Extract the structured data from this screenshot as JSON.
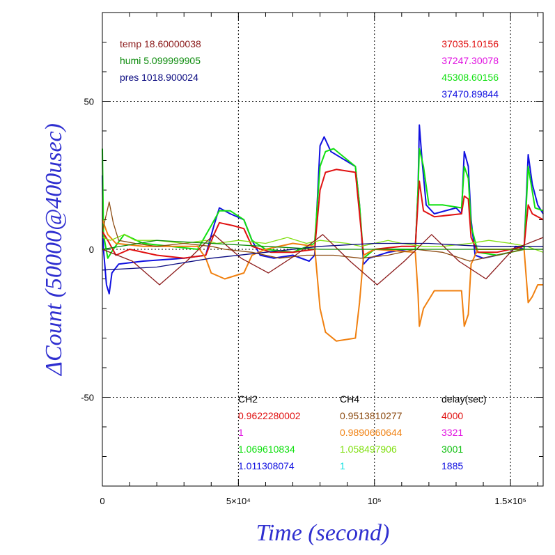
{
  "chart_data": {
    "type": "line",
    "title": "",
    "xlabel": "Time (second)",
    "ylabel": "ΔCount (50000@400usec)",
    "xlim": [
      0,
      162000
    ],
    "ylim": [
      -80,
      80
    ],
    "x_ticks": [
      {
        "value": 0,
        "label": "0"
      },
      {
        "value": 50000,
        "label": "5×10⁴"
      },
      {
        "value": 100000,
        "label": "10⁵"
      },
      {
        "value": 150000,
        "label": "1.5×10⁵"
      }
    ],
    "y_ticks": [
      {
        "value": 50,
        "label": "50"
      },
      {
        "value": 0,
        "label": "0"
      },
      {
        "value": -50,
        "label": "-50"
      }
    ],
    "grid": true,
    "env_legend": [
      {
        "text": "temp 18.60000038",
        "color": "#8b1a1a"
      },
      {
        "text": "humi 5.099999905",
        "color": "#0a8a0a"
      },
      {
        "text": "pres 1018.900024",
        "color": "#0a0a80"
      }
    ],
    "count_legend": [
      {
        "text": "37035.10156",
        "color": "#e01010"
      },
      {
        "text": "37247.30078",
        "color": "#e010e0"
      },
      {
        "text": "45308.60156",
        "color": "#10e010"
      },
      {
        "text": "37470.89844",
        "color": "#1010e0"
      }
    ],
    "factor_table": {
      "headers": [
        "CH2",
        "CH4",
        "delay(sec)"
      ],
      "rows": [
        {
          "ch2": "0.9622280002",
          "ch2_color": "#e01010",
          "ch4": "0.9513810277",
          "ch4_color": "#8b4a10",
          "delay": "4000",
          "delay_color": "#e01010"
        },
        {
          "ch2": "1",
          "ch2_color": "#e010e0",
          "ch4": "0.9890660644",
          "ch4_color": "#f08010",
          "delay": "3321",
          "delay_color": "#e010e0"
        },
        {
          "ch2": "1.069610834",
          "ch2_color": "#10e010",
          "ch4": "1.058497906",
          "ch4_color": "#80e010",
          "delay": "3001",
          "delay_color": "#10c010"
        },
        {
          "ch2": "1.011308074",
          "ch2_color": "#1010e0",
          "ch4": "1",
          "ch4_color": "#10e0e0",
          "delay": "1885",
          "delay_color": "#1010e0"
        }
      ]
    },
    "series": [
      {
        "color": "#1010e0",
        "values": [
          [
            0,
            25
          ],
          [
            400,
            0
          ],
          [
            1500,
            -12
          ],
          [
            2500,
            -15
          ],
          [
            3500,
            -8
          ],
          [
            6000,
            -5
          ],
          [
            15000,
            -4
          ],
          [
            30000,
            -3
          ],
          [
            38000,
            -2
          ],
          [
            41000,
            8
          ],
          [
            43000,
            14
          ],
          [
            47000,
            12
          ],
          [
            52000,
            10
          ],
          [
            55000,
            3
          ],
          [
            58000,
            -2
          ],
          [
            63000,
            -3
          ],
          [
            70000,
            -2
          ],
          [
            76000,
            -4
          ],
          [
            78000,
            -2
          ],
          [
            80000,
            35
          ],
          [
            81500,
            38
          ],
          [
            84000,
            33
          ],
          [
            93000,
            28
          ],
          [
            94500,
            15
          ],
          [
            96000,
            -5
          ],
          [
            98000,
            -3
          ],
          [
            105000,
            -1
          ],
          [
            112000,
            0
          ],
          [
            115000,
            0
          ],
          [
            116000,
            20
          ],
          [
            116500,
            42
          ],
          [
            117500,
            30
          ],
          [
            119000,
            15
          ],
          [
            122000,
            12
          ],
          [
            130000,
            14
          ],
          [
            132000,
            12
          ],
          [
            133000,
            33
          ],
          [
            134500,
            28
          ],
          [
            135500,
            10
          ],
          [
            137000,
            -2
          ],
          [
            140000,
            -3
          ],
          [
            145000,
            -2
          ],
          [
            150000,
            -1
          ],
          [
            152000,
            1
          ],
          [
            155000,
            0
          ],
          [
            156500,
            32
          ],
          [
            158000,
            22
          ],
          [
            160000,
            15
          ],
          [
            162000,
            12
          ]
        ]
      },
      {
        "color": "#10e010",
        "values": [
          [
            0,
            34
          ],
          [
            400,
            5
          ],
          [
            2000,
            -3
          ],
          [
            4000,
            0
          ],
          [
            8000,
            5
          ],
          [
            15000,
            2
          ],
          [
            25000,
            1
          ],
          [
            35000,
            0
          ],
          [
            40000,
            8
          ],
          [
            43000,
            13
          ],
          [
            47000,
            13
          ],
          [
            52000,
            10
          ],
          [
            55000,
            3
          ],
          [
            60000,
            0
          ],
          [
            70000,
            -1
          ],
          [
            78000,
            2
          ],
          [
            80000,
            28
          ],
          [
            82000,
            33
          ],
          [
            85000,
            34
          ],
          [
            93000,
            28
          ],
          [
            94500,
            15
          ],
          [
            96000,
            -3
          ],
          [
            100000,
            0
          ],
          [
            110000,
            0
          ],
          [
            115000,
            0
          ],
          [
            116000,
            20
          ],
          [
            116500,
            34
          ],
          [
            118000,
            28
          ],
          [
            120000,
            15
          ],
          [
            125000,
            15
          ],
          [
            132000,
            14
          ],
          [
            133000,
            28
          ],
          [
            134500,
            24
          ],
          [
            135500,
            8
          ],
          [
            138000,
            -1
          ],
          [
            145000,
            -2
          ],
          [
            150000,
            -1
          ],
          [
            155000,
            0
          ],
          [
            156500,
            28
          ],
          [
            159000,
            14
          ],
          [
            162000,
            13
          ]
        ]
      },
      {
        "color": "#e01010",
        "values": [
          [
            0,
            6
          ],
          [
            2000,
            3
          ],
          [
            5000,
            -2
          ],
          [
            10000,
            0
          ],
          [
            20000,
            -2
          ],
          [
            30000,
            -3
          ],
          [
            38000,
            -2
          ],
          [
            41000,
            5
          ],
          [
            43000,
            9
          ],
          [
            48000,
            8
          ],
          [
            52000,
            7
          ],
          [
            55000,
            1
          ],
          [
            62000,
            -1
          ],
          [
            70000,
            -1
          ],
          [
            78000,
            0
          ],
          [
            80000,
            20
          ],
          [
            82000,
            26
          ],
          [
            86000,
            27
          ],
          [
            93000,
            26
          ],
          [
            94500,
            12
          ],
          [
            96000,
            -2
          ],
          [
            100000,
            0
          ],
          [
            110000,
            1
          ],
          [
            115000,
            1
          ],
          [
            116000,
            16
          ],
          [
            116500,
            23
          ],
          [
            118000,
            13
          ],
          [
            122000,
            11
          ],
          [
            132000,
            12
          ],
          [
            133000,
            18
          ],
          [
            134500,
            17
          ],
          [
            135500,
            4
          ],
          [
            138000,
            -1
          ],
          [
            145000,
            -1
          ],
          [
            150000,
            0
          ],
          [
            155000,
            1
          ],
          [
            156500,
            15
          ],
          [
            158000,
            12
          ],
          [
            162000,
            10
          ]
        ]
      },
      {
        "color": "#f08010",
        "values": [
          [
            0,
            10
          ],
          [
            2000,
            5
          ],
          [
            5000,
            2
          ],
          [
            15000,
            1
          ],
          [
            25000,
            1
          ],
          [
            35000,
            1
          ],
          [
            38000,
            -3
          ],
          [
            40000,
            -8
          ],
          [
            45000,
            -10
          ],
          [
            52000,
            -8
          ],
          [
            55000,
            -2
          ],
          [
            60000,
            0
          ],
          [
            70000,
            2
          ],
          [
            78000,
            1
          ],
          [
            80000,
            -20
          ],
          [
            82000,
            -28
          ],
          [
            86000,
            -31
          ],
          [
            93000,
            -30
          ],
          [
            94500,
            -18
          ],
          [
            96000,
            -2
          ],
          [
            100000,
            0
          ],
          [
            115000,
            -1
          ],
          [
            116000,
            -15
          ],
          [
            116500,
            -26
          ],
          [
            118000,
            -20
          ],
          [
            122000,
            -14
          ],
          [
            132000,
            -14
          ],
          [
            133000,
            -26
          ],
          [
            134500,
            -22
          ],
          [
            135500,
            -5
          ],
          [
            138000,
            0
          ],
          [
            150000,
            0
          ],
          [
            155000,
            0
          ],
          [
            156500,
            -18
          ],
          [
            158000,
            -16
          ],
          [
            160000,
            -12
          ],
          [
            162000,
            -12
          ]
        ]
      },
      {
        "color": "#80e010",
        "values": [
          [
            0,
            4
          ],
          [
            3000,
            3
          ],
          [
            8000,
            5
          ],
          [
            12000,
            3
          ],
          [
            20000,
            3
          ],
          [
            30000,
            2
          ],
          [
            38000,
            3
          ],
          [
            42000,
            2
          ],
          [
            50000,
            3
          ],
          [
            60000,
            2
          ],
          [
            68000,
            4
          ],
          [
            75000,
            2
          ],
          [
            80000,
            3
          ],
          [
            90000,
            2
          ],
          [
            95000,
            1
          ],
          [
            105000,
            3
          ],
          [
            110000,
            2
          ],
          [
            118000,
            1
          ],
          [
            125000,
            1
          ],
          [
            135000,
            2
          ],
          [
            142000,
            3
          ],
          [
            150000,
            2
          ],
          [
            156000,
            1
          ],
          [
            162000,
            -1
          ]
        ]
      },
      {
        "color": "#8b4a10",
        "values": [
          [
            0,
            6
          ],
          [
            1500,
            12
          ],
          [
            2500,
            16
          ],
          [
            4000,
            9
          ],
          [
            6000,
            3
          ],
          [
            12000,
            2
          ],
          [
            20000,
            1
          ],
          [
            30000,
            2
          ],
          [
            40000,
            1
          ],
          [
            45000,
            0
          ],
          [
            55000,
            -1
          ],
          [
            65000,
            -3
          ],
          [
            75000,
            -2
          ],
          [
            85000,
            -2
          ],
          [
            95000,
            -3
          ],
          [
            105000,
            -2
          ],
          [
            115000,
            0
          ],
          [
            125000,
            -1
          ],
          [
            135000,
            -4
          ],
          [
            145000,
            -2
          ],
          [
            155000,
            0
          ],
          [
            162000,
            0
          ]
        ]
      },
      {
        "color": "#8b1a1a",
        "values": [
          [
            0,
            0
          ],
          [
            11000,
            -4
          ],
          [
            21000,
            -12
          ],
          [
            31000,
            -4
          ],
          [
            41000,
            5
          ],
          [
            51000,
            -3
          ],
          [
            61000,
            -8
          ],
          [
            71000,
            -2
          ],
          [
            81000,
            5
          ],
          [
            91000,
            -4
          ],
          [
            101000,
            -12
          ],
          [
            111000,
            -4
          ],
          [
            121000,
            5
          ],
          [
            131000,
            -4
          ],
          [
            141000,
            -10
          ],
          [
            151000,
            0
          ],
          [
            162000,
            4
          ]
        ]
      },
      {
        "color": "#0a0a80",
        "values": [
          [
            0,
            -7
          ],
          [
            20000,
            -6
          ],
          [
            40000,
            -3
          ],
          [
            60000,
            -1
          ],
          [
            80000,
            1
          ],
          [
            100000,
            2
          ],
          [
            120000,
            2
          ],
          [
            140000,
            1
          ],
          [
            162000,
            1
          ]
        ]
      },
      {
        "color": "#0a8a0a",
        "values": [
          [
            0,
            0
          ],
          [
            20000,
            3
          ],
          [
            40000,
            2
          ],
          [
            60000,
            1
          ],
          [
            80000,
            0
          ],
          [
            100000,
            0
          ],
          [
            120000,
            0
          ],
          [
            140000,
            0
          ],
          [
            162000,
            0
          ]
        ]
      }
    ]
  }
}
